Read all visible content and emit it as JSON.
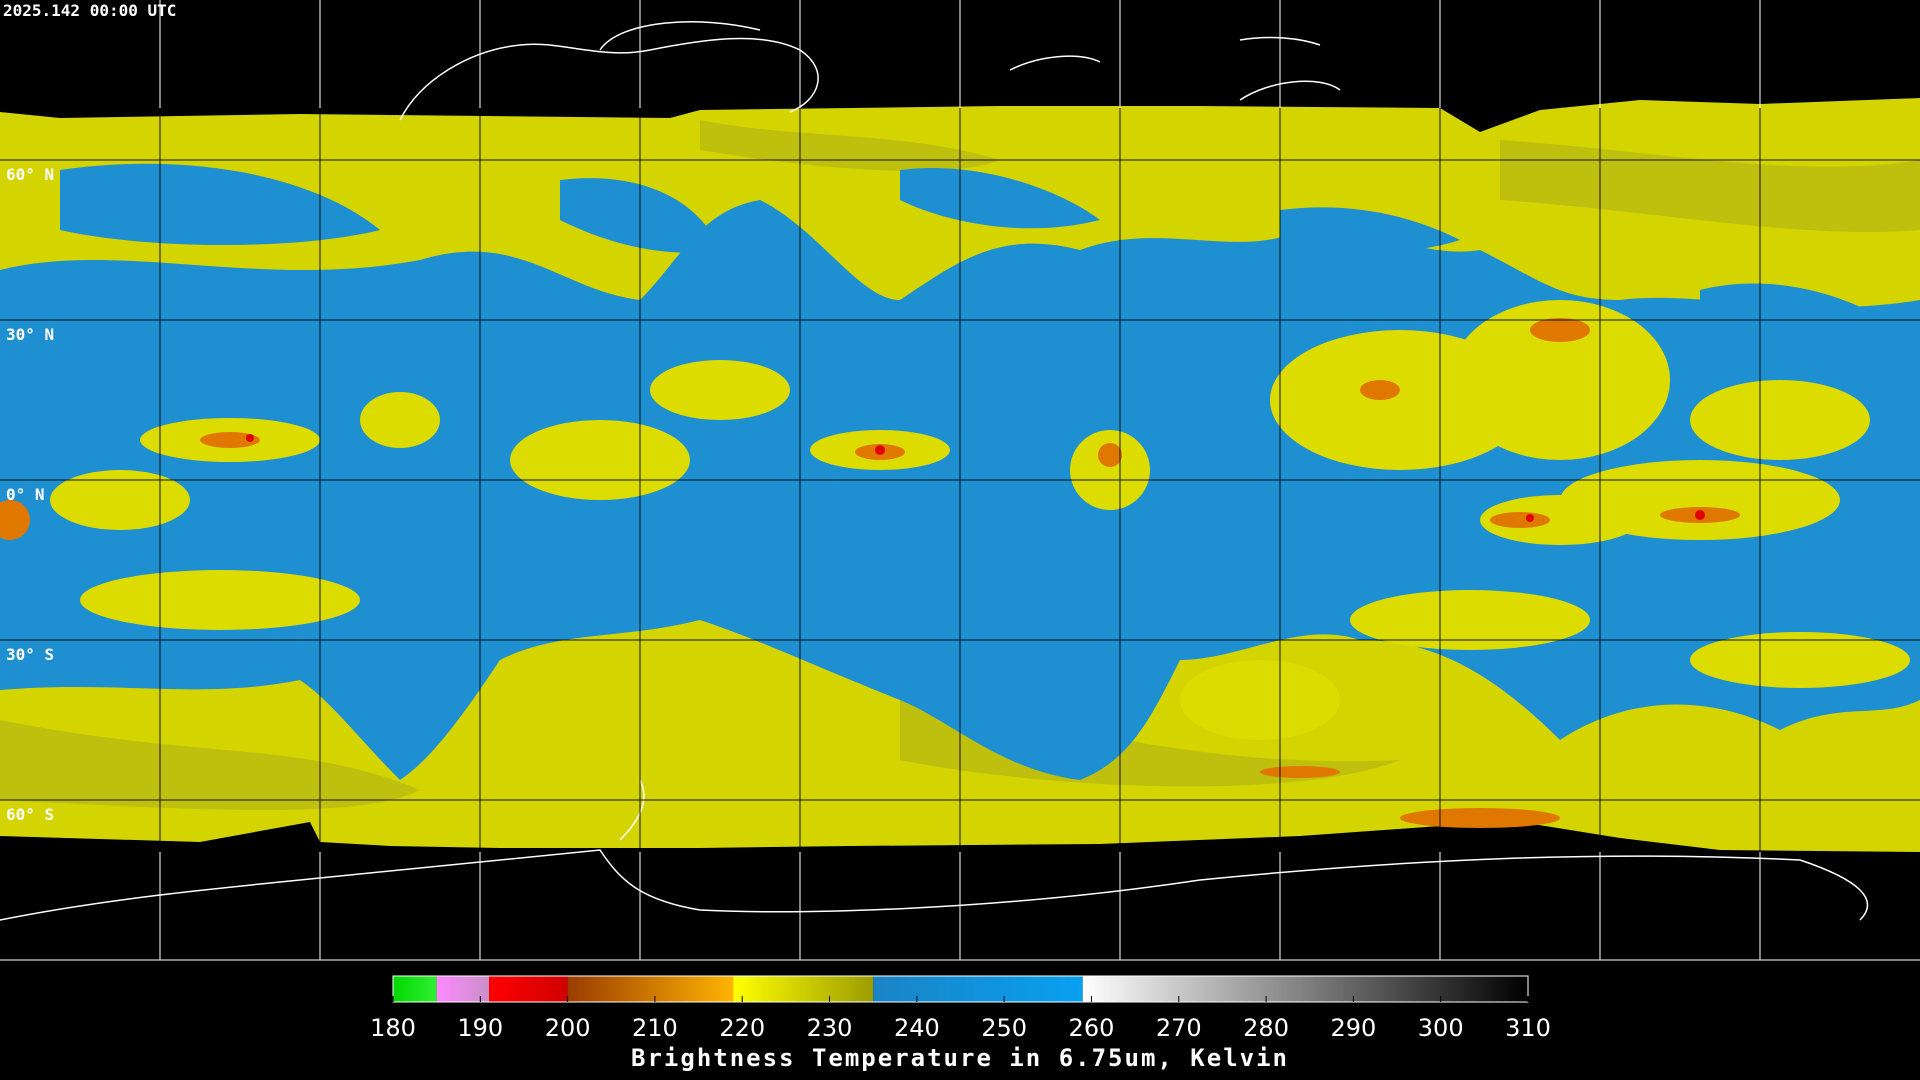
{
  "timestamp": "2025.142 00:00 UTC",
  "lat_labels": [
    "60° N",
    "30° N",
    "0° N",
    "30° S",
    "60° S"
  ],
  "colorbar": {
    "title": "Brightness Temperature in 6.75um, Kelvin",
    "lim": [
      180,
      310
    ],
    "ticks": [
      180,
      190,
      200,
      210,
      220,
      230,
      240,
      250,
      260,
      270,
      280,
      290,
      300,
      310
    ],
    "segments": [
      {
        "from": 180,
        "to": 185,
        "colors": [
          "#00d800",
          "#33ee33"
        ]
      },
      {
        "from": 185,
        "to": 191,
        "colors": [
          "#ff88ff",
          "#c890c8"
        ]
      },
      {
        "from": 191,
        "to": 200,
        "colors": [
          "#ff0000",
          "#d00000"
        ]
      },
      {
        "from": 200,
        "to": 219,
        "colors": [
          "#9a3c00",
          "#ffb400"
        ]
      },
      {
        "from": 219,
        "to": 235,
        "colors": [
          "#ffff00",
          "#9c9c00"
        ]
      },
      {
        "from": 235,
        "to": 259,
        "colors": [
          "#1a84c4",
          "#08a0f0"
        ]
      },
      {
        "from": 259,
        "to": 310,
        "colors": [
          "#ffffff",
          "#000000"
        ]
      }
    ]
  }
}
